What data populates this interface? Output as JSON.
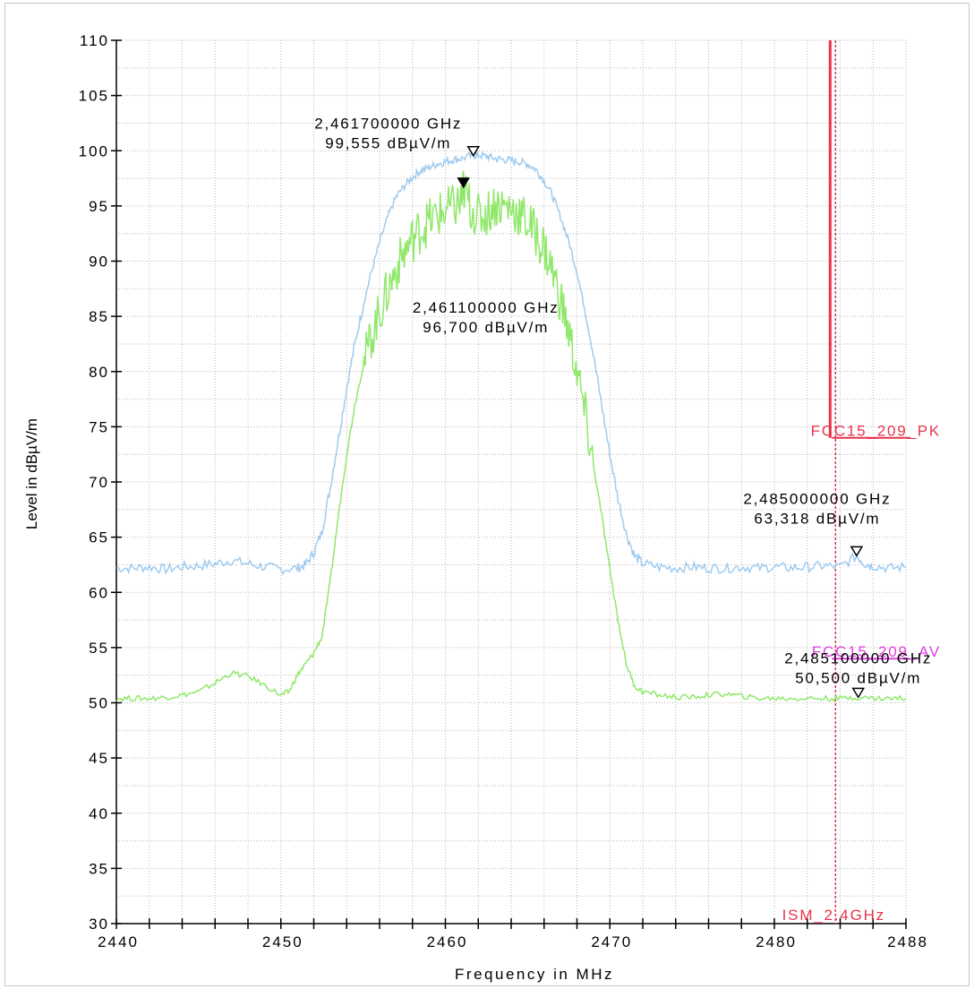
{
  "chart_data": {
    "type": "line",
    "xlabel": "Frequency in MHz",
    "ylabel": "Level in dBµV/m",
    "xlim": [
      2440,
      2488
    ],
    "ylim": [
      30,
      110
    ],
    "x_ticks": [
      2440,
      2450,
      2460,
      2470,
      2480,
      2488
    ],
    "y_ticks": [
      110,
      105,
      100,
      95,
      90,
      85,
      80,
      75,
      70,
      65,
      60,
      55,
      50,
      45,
      40,
      35,
      30
    ],
    "grid": true,
    "colors": {
      "peak": "#9ecbf0",
      "average": "#8fe86a",
      "limit_pk": "#e8334a",
      "limit_av": "#e040e0",
      "band_edge": "#e8334a"
    },
    "series": [
      {
        "color": "#9ecbf0",
        "points": [
          [
            2440,
            62.2
          ],
          [
            2441,
            62.2
          ],
          [
            2442,
            62.3
          ],
          [
            2443,
            62.1
          ],
          [
            2444,
            62.3
          ],
          [
            2445,
            62.4
          ],
          [
            2446,
            62.6
          ],
          [
            2447,
            62.9
          ],
          [
            2448,
            62.6
          ],
          [
            2449,
            62.3
          ],
          [
            2450,
            62.1
          ],
          [
            2451,
            62.2
          ],
          [
            2451.5,
            62.5
          ],
          [
            2452,
            63.6
          ],
          [
            2452.5,
            65.5
          ],
          [
            2453,
            69.5
          ],
          [
            2453.5,
            74
          ],
          [
            2454,
            78.5
          ],
          [
            2454.5,
            82.5
          ],
          [
            2455,
            86
          ],
          [
            2455.5,
            89
          ],
          [
            2456,
            91.7
          ],
          [
            2456.5,
            94
          ],
          [
            2457,
            95.8
          ],
          [
            2457.5,
            96.8
          ],
          [
            2458,
            97.6
          ],
          [
            2458.5,
            98.2
          ],
          [
            2459,
            98.5
          ],
          [
            2459.5,
            98.8
          ],
          [
            2460,
            99
          ],
          [
            2460.5,
            99.2
          ],
          [
            2461,
            99.3
          ],
          [
            2461.7,
            99.6
          ],
          [
            2462,
            99.6
          ],
          [
            2462.5,
            99.5
          ],
          [
            2463,
            99.3
          ],
          [
            2463.5,
            99.2
          ],
          [
            2464,
            99.1
          ],
          [
            2464.5,
            99
          ],
          [
            2465,
            98.8
          ],
          [
            2465.5,
            98.3
          ],
          [
            2466,
            97.3
          ],
          [
            2466.5,
            96
          ],
          [
            2467,
            94
          ],
          [
            2467.5,
            91.8
          ],
          [
            2468,
            89
          ],
          [
            2468.5,
            85.5
          ],
          [
            2469,
            81.5
          ],
          [
            2469.5,
            77
          ],
          [
            2470,
            72.5
          ],
          [
            2470.5,
            68.5
          ],
          [
            2471,
            65.3
          ],
          [
            2471.5,
            63.3
          ],
          [
            2472,
            62.6
          ],
          [
            2473,
            62.3
          ],
          [
            2474,
            62.2
          ],
          [
            2475,
            62.3
          ],
          [
            2476,
            62.2
          ],
          [
            2477,
            62.2
          ],
          [
            2478,
            62.3
          ],
          [
            2479,
            62.2
          ],
          [
            2480,
            62.3
          ],
          [
            2481,
            62.2
          ],
          [
            2482,
            62.3
          ],
          [
            2483,
            62.4
          ],
          [
            2484,
            62.3
          ],
          [
            2485,
            63.3
          ],
          [
            2485.5,
            62.6
          ],
          [
            2486,
            62.4
          ],
          [
            2487,
            62.2
          ],
          [
            2488,
            62.3
          ]
        ]
      },
      {
        "color": "#8fe86a",
        "points": [
          [
            2440,
            50.4
          ],
          [
            2441,
            50.4
          ],
          [
            2442,
            50.4
          ],
          [
            2443,
            50.5
          ],
          [
            2444,
            50.7
          ],
          [
            2445,
            51
          ],
          [
            2446,
            51.8
          ],
          [
            2447,
            52.7
          ],
          [
            2448,
            52.4
          ],
          [
            2449,
            51.6
          ],
          [
            2450,
            50.7
          ],
          [
            2450.5,
            51
          ],
          [
            2451,
            52.5
          ],
          [
            2451.5,
            53.5
          ],
          [
            2452,
            54.5
          ],
          [
            2452.5,
            56
          ],
          [
            2453,
            61
          ],
          [
            2453.5,
            67
          ],
          [
            2454,
            72.5
          ],
          [
            2454.5,
            77
          ],
          [
            2455,
            80.5
          ],
          [
            2455.5,
            83.2
          ],
          [
            2456,
            85.4
          ],
          [
            2456.5,
            87.3
          ],
          [
            2457,
            89.3
          ],
          [
            2457.5,
            90.8
          ],
          [
            2458,
            92
          ],
          [
            2458.5,
            92.9
          ],
          [
            2459,
            93.6
          ],
          [
            2459.5,
            94.1
          ],
          [
            2460,
            94.5
          ],
          [
            2460.5,
            94.9
          ],
          [
            2461,
            95.4
          ],
          [
            2461.1,
            96.7
          ],
          [
            2461.5,
            95
          ],
          [
            2462,
            94
          ],
          [
            2462.5,
            94.3
          ],
          [
            2463,
            95.2
          ],
          [
            2463.5,
            95
          ],
          [
            2464,
            94.8
          ],
          [
            2464.5,
            94.3
          ],
          [
            2465,
            93.5
          ],
          [
            2465.5,
            92.5
          ],
          [
            2466,
            91.2
          ],
          [
            2466.5,
            89.2
          ],
          [
            2467,
            86.5
          ],
          [
            2467.5,
            83.5
          ],
          [
            2468,
            80
          ],
          [
            2468.5,
            76
          ],
          [
            2469,
            71.5
          ],
          [
            2469.5,
            67
          ],
          [
            2470,
            62
          ],
          [
            2470.5,
            57.5
          ],
          [
            2471,
            53.5
          ],
          [
            2471.5,
            51.5
          ],
          [
            2472,
            51
          ],
          [
            2473,
            50.7
          ],
          [
            2474,
            50.5
          ],
          [
            2475,
            50.5
          ],
          [
            2476,
            50.7
          ],
          [
            2477,
            50.8
          ],
          [
            2478,
            50.6
          ],
          [
            2479,
            50.4
          ],
          [
            2480,
            50.4
          ],
          [
            2481,
            50.4
          ],
          [
            2482,
            50.4
          ],
          [
            2483,
            50.4
          ],
          [
            2484,
            50.4
          ],
          [
            2485,
            50.5
          ],
          [
            2486,
            50.4
          ],
          [
            2487,
            50.4
          ],
          [
            2488,
            50.4
          ]
        ]
      }
    ],
    "limits": [
      {
        "label": "FCC15_209_PK",
        "start_x": 2483.5,
        "value": 74,
        "color": "#e8334a"
      },
      {
        "label": "FCC15_209_AV",
        "start_x": 2483.5,
        "value": 54,
        "color": "#e040e0"
      }
    ],
    "band_edge": {
      "label": "ISM_2.4GHz",
      "x": 2483.5
    },
    "markers": [
      {
        "freq_text": "2,461700000 GHz",
        "level_text": "99,555 dBµV/m",
        "x": 2461.7,
        "y": 99.555,
        "filled": false
      },
      {
        "freq_text": "2,461100000 GHz",
        "level_text": "96,700 dBµV/m",
        "x": 2461.1,
        "y": 96.7,
        "filled": true
      },
      {
        "freq_text": "2,485000000 GHz",
        "level_text": "63,318 dBµV/m",
        "x": 2485,
        "y": 63.318,
        "filled": false
      },
      {
        "freq_text": "2,485100000 GHz",
        "level_text": "50,500 dBµV/m",
        "x": 2485.1,
        "y": 50.5,
        "filled": false
      }
    ]
  }
}
